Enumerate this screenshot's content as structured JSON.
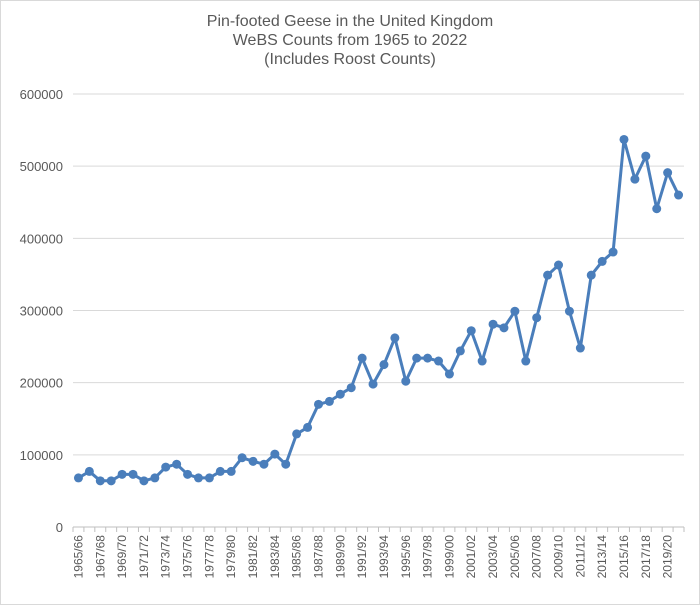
{
  "chart_data": {
    "type": "line",
    "title_lines": [
      "Pin-footed Geese in the United Kingdom",
      "WeBS Counts from 1965 to 2022",
      "(Includes Roost Counts)"
    ],
    "xlabel": "",
    "ylabel": "",
    "ylim": [
      0,
      600000
    ],
    "yticks": [
      "0",
      "100000",
      "200000",
      "300000",
      "400000",
      "500000",
      "600000"
    ],
    "grid": true,
    "legend": "none",
    "colors": {
      "series": "#4a7ebb",
      "grid": "#d9d9d9",
      "text": "#595959"
    },
    "categories": [
      "1965/66",
      "1966/67",
      "1967/68",
      "1968/69",
      "1969/70",
      "1970/71",
      "1971/72",
      "1972/73",
      "1973/74",
      "1974/75",
      "1975/76",
      "1976/77",
      "1977/78",
      "1978/79",
      "1979/80",
      "1980/81",
      "1981/82",
      "1982/83",
      "1983/84",
      "1984/85",
      "1985/86",
      "1986/87",
      "1987/88",
      "1988/89",
      "1989/90",
      "1990/91",
      "1991/92",
      "1992/93",
      "1993/94",
      "1994/95",
      "1995/96",
      "1996/97",
      "1997/98",
      "1998/99",
      "1999/00",
      "2000/01",
      "2001/02",
      "2002/03",
      "2003/04",
      "2004/05",
      "2005/06",
      "2006/07",
      "2007/08",
      "2008/09",
      "2009/10",
      "2010/11",
      "2011/12",
      "2012/13",
      "2013/14",
      "2014/15",
      "2015/16",
      "2016/17",
      "2017/18",
      "2018/19",
      "2019/20",
      "2020/21"
    ],
    "labeled_ticks": [
      "1965/66",
      "1967/68",
      "1969/70",
      "1971/72",
      "1973/74",
      "1975/76",
      "1977/78",
      "1979/80",
      "1981/82",
      "1983/84",
      "1985/86",
      "1987/88",
      "1989/90",
      "1991/92",
      "1993/94",
      "1995/96",
      "1997/98",
      "1999/00",
      "2001/02",
      "2003/04",
      "2005/06",
      "2007/08",
      "2009/10",
      "2011/12",
      "2013/14",
      "2015/16",
      "2017/18",
      "2019/20"
    ],
    "series": [
      {
        "values": [
          68000,
          77000,
          64000,
          64000,
          73000,
          73000,
          64000,
          68000,
          83000,
          87000,
          73000,
          68000,
          68000,
          77000,
          77000,
          96000,
          91000,
          87000,
          101000,
          87000,
          129000,
          138000,
          170000,
          174000,
          184000,
          193000,
          234000,
          198000,
          225000,
          262000,
          202000,
          234000,
          234000,
          230000,
          212000,
          244000,
          272000,
          230000,
          281000,
          276000,
          299000,
          230000,
          290000,
          349000,
          363000,
          299000,
          248000,
          349000,
          368000,
          381000,
          537000,
          482000,
          514000,
          441000,
          491000,
          460000
        ]
      }
    ]
  }
}
